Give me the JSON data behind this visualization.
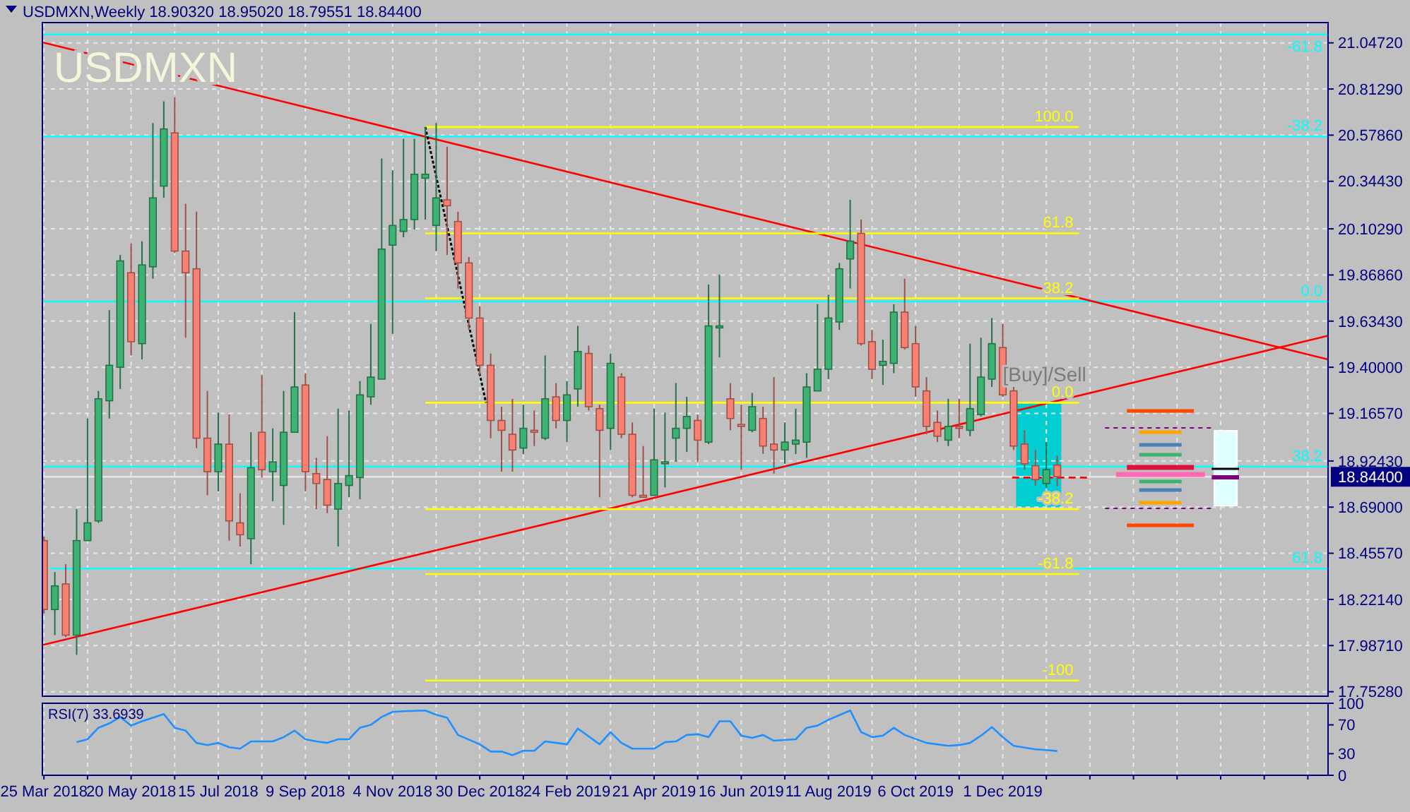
{
  "chart_data": [
    {
      "type": "candlestick",
      "title": "USDMXN,Weekly  18.90320 18.95020 18.79551 18.84400",
      "subtitle": "USDMXN",
      "xlim": [
        "2018-03-24",
        "2020-06-27"
      ],
      "xticks": [
        "2018-03-25",
        "2018-04-22",
        "2018-05-20",
        "2018-06-17",
        "2018-07-15",
        "2018-08-12",
        "2018-09-09",
        "2018-10-07",
        "2018-11-04",
        "2018-12-02",
        "2018-12-30",
        "2019-01-27",
        "2019-02-24",
        "2019-03-24",
        "2019-04-21",
        "2019-05-19",
        "2019-06-16",
        "2019-07-14",
        "2019-08-11",
        "2019-09-08",
        "2019-10-06",
        "2019-11-03",
        "2019-12-01",
        "2019-12-29",
        "2020-01-26",
        "2020-02-23",
        "2020-03-22",
        "2020-04-19",
        "2020-05-17",
        "2020-06-14"
      ],
      "ylim": [
        17.73,
        21.15
      ],
      "yticks": [
        {
          "value": 17.7528,
          "label": "17.75280"
        },
        {
          "value": 17.9871,
          "label": "17.98710"
        },
        {
          "value": 18.2214,
          "label": "18.22140"
        },
        {
          "value": 18.4557,
          "label": "18.45570"
        },
        {
          "value": 18.69,
          "label": "18.69000"
        },
        {
          "value": 18.9243,
          "label": "18.92430"
        },
        {
          "value": 19.1657,
          "label": "19.16570"
        },
        {
          "value": 19.4,
          "label": "19.40000"
        },
        {
          "value": 19.6343,
          "label": "19.63430"
        },
        {
          "value": 19.8686,
          "label": "19.86860"
        },
        {
          "value": 20.1029,
          "label": "20.10290"
        },
        {
          "value": 20.3443,
          "label": "20.34430"
        },
        {
          "value": 20.5786,
          "label": "20.57860"
        },
        {
          "value": 20.8129,
          "label": "20.81290"
        },
        {
          "value": 21.0472,
          "label": "21.04720"
        }
      ],
      "tick_labels": "y",
      "grid": true,
      "ref_lines": [
        {
          "axis": "y",
          "value": 18.844,
          "label": "18.84400",
          "color": "#e6e6e6"
        }
      ],
      "annotations": [
        {
          "text": "[Buy]/Sell",
          "x": "2019-12-01",
          "y": 19.33
        }
      ],
      "series": [
        {
          "type": "line",
          "name": "-61.8",
          "x": [
            "2018-03-24",
            "2020-06-27"
          ],
          "values": [
            21.09,
            21.09
          ],
          "color": "#00ffff"
        },
        {
          "type": "line",
          "name": "-38.2",
          "x": [
            "2018-03-24",
            "2020-06-27"
          ],
          "values": [
            20.572,
            20.572
          ],
          "color": "#00ffff"
        },
        {
          "type": "line",
          "name": "0.0",
          "x": [
            "2018-03-24",
            "2020-06-27"
          ],
          "values": [
            19.734,
            19.734
          ],
          "color": "#00ffff"
        },
        {
          "type": "line",
          "name": "38.2",
          "x": [
            "2018-03-24",
            "2020-06-27"
          ],
          "values": [
            18.896,
            18.896
          ],
          "color": "#00ffff"
        },
        {
          "type": "line",
          "name": "61.8",
          "x": [
            "2018-03-29",
            "2020-06-27"
          ],
          "values": [
            18.378,
            18.378
          ],
          "color": "#00ffff"
        },
        {
          "type": "line",
          "x": [
            "2018-03-24",
            "2020-06-27"
          ],
          "values": [
            21.05,
            19.44
          ],
          "color": "#ff0000"
        },
        {
          "type": "line",
          "x": [
            "2018-03-24",
            "2020-06-27"
          ],
          "values": [
            17.99,
            19.56
          ],
          "color": "#ff0000"
        },
        {
          "type": "line",
          "name": "100.0",
          "x": [
            "2018-11-25",
            "2020-01-19"
          ],
          "values": [
            20.62,
            20.62
          ],
          "color": "#ffff00"
        },
        {
          "type": "line",
          "name": "61.8",
          "x": [
            "2018-11-25",
            "2020-01-19"
          ],
          "values": [
            20.08,
            20.08
          ],
          "color": "#ffff00"
        },
        {
          "type": "line",
          "name": "38.2",
          "x": [
            "2018-11-25",
            "2020-01-19"
          ],
          "values": [
            19.75,
            19.75
          ],
          "color": "#ffff00"
        },
        {
          "type": "line",
          "name": "0.0",
          "x": [
            "2018-11-25",
            "2020-01-19"
          ],
          "values": [
            19.22,
            19.22
          ],
          "color": "#ffff00"
        },
        {
          "type": "line",
          "name": "-38.2",
          "x": [
            "2018-11-25",
            "2020-01-19"
          ],
          "values": [
            18.68,
            18.68
          ],
          "color": "#ffff00"
        },
        {
          "type": "line",
          "name": "-61.8",
          "x": [
            "2018-11-25",
            "2020-01-19"
          ],
          "values": [
            18.35,
            18.35
          ],
          "color": "#ffff00"
        },
        {
          "type": "line",
          "name": "-100",
          "x": [
            "2018-11-25",
            "2020-01-19"
          ],
          "values": [
            17.81,
            17.81
          ],
          "color": "#ffff00"
        },
        {
          "type": "line",
          "x": [
            "2018-11-25",
            "2019-01-03"
          ],
          "values": [
            20.62,
            19.22
          ],
          "color": "#000000",
          "line_style": "dotted"
        },
        {
          "type": "line",
          "x": [
            "2019-12-07",
            "2020-01-26"
          ],
          "values": [
            18.84,
            18.84
          ],
          "color": "#ff0000",
          "line_style": "dashed"
        },
        {
          "type": "candlestick",
          "color": "#3cb371",
          "x": [
            "2018-04-01",
            "2018-04-15",
            "2018-04-22",
            "2018-04-29",
            "2018-05-06",
            "2018-05-13",
            "2018-05-27",
            "2018-06-03",
            "2018-06-10",
            "2018-07-15",
            "2018-08-05",
            "2018-08-19",
            "2018-08-26",
            "2018-09-02",
            "2018-09-30",
            "2018-10-07",
            "2018-10-14",
            "2018-10-21",
            "2018-10-28",
            "2018-11-04",
            "2018-11-11",
            "2018-11-18",
            "2018-11-25",
            "2018-12-02",
            "2019-01-27",
            "2019-02-10",
            "2019-02-24",
            "2019-03-03",
            "2019-03-24",
            "2019-04-21",
            "2019-04-28",
            "2019-05-05",
            "2019-05-12",
            "2019-05-26",
            "2019-06-02",
            "2019-06-23",
            "2019-07-14",
            "2019-07-21",
            "2019-07-28",
            "2019-08-04",
            "2019-08-11",
            "2019-08-18",
            "2019-08-25",
            "2019-09-15",
            "2019-09-22",
            "2019-10-27",
            "2019-11-10",
            "2019-11-17",
            "2019-11-24",
            "2019-12-29"
          ],
          "ohlc": [
            [
              18.17,
              18.36,
              18.04,
              18.29
            ],
            [
              18.04,
              18.68,
              17.94,
              18.52
            ],
            [
              18.52,
              19.14,
              18.52,
              18.61
            ],
            [
              18.62,
              19.28,
              18.61,
              19.24
            ],
            [
              19.23,
              19.69,
              19.14,
              19.41
            ],
            [
              19.4,
              19.97,
              19.29,
              19.94
            ],
            [
              19.52,
              20.04,
              19.44,
              19.92
            ],
            [
              19.91,
              20.64,
              19.85,
              20.26
            ],
            [
              20.32,
              20.75,
              20.26,
              20.61
            ],
            [
              18.87,
              19.17,
              18.77,
              19.01
            ],
            [
              18.53,
              19.07,
              18.4,
              18.89
            ],
            [
              18.87,
              19.09,
              18.72,
              18.92
            ],
            [
              18.8,
              19.28,
              18.6,
              19.07
            ],
            [
              19.07,
              19.68,
              19.07,
              19.3
            ],
            [
              18.68,
              19.19,
              18.49,
              18.81
            ],
            [
              18.8,
              19.18,
              18.74,
              18.85
            ],
            [
              18.84,
              19.33,
              18.73,
              19.26
            ],
            [
              19.25,
              19.62,
              19.21,
              19.35
            ],
            [
              19.34,
              20.46,
              19.34,
              20.0
            ],
            [
              20.02,
              20.4,
              19.57,
              20.12
            ],
            [
              20.09,
              20.56,
              20.06,
              20.15
            ],
            [
              20.15,
              20.56,
              20.1,
              20.38
            ],
            [
              20.36,
              20.62,
              20.15,
              20.38
            ],
            [
              20.12,
              20.64,
              19.99,
              20.26
            ],
            [
              18.99,
              19.21,
              18.96,
              19.09
            ],
            [
              19.04,
              19.46,
              19.03,
              19.24
            ],
            [
              19.13,
              19.33,
              19.02,
              19.26
            ],
            [
              19.29,
              19.61,
              19.2,
              19.48
            ],
            [
              19.09,
              19.47,
              18.98,
              19.42
            ],
            [
              18.75,
              19.19,
              18.75,
              18.93
            ],
            [
              18.91,
              19.17,
              18.79,
              18.92
            ],
            [
              19.04,
              19.32,
              18.92,
              19.09
            ],
            [
              19.09,
              19.25,
              18.97,
              19.15
            ],
            [
              19.02,
              19.82,
              19.01,
              19.61
            ],
            [
              19.6,
              19.87,
              19.45,
              19.61
            ],
            [
              19.08,
              19.27,
              19.07,
              19.2
            ],
            [
              18.98,
              19.12,
              18.91,
              19.02
            ],
            [
              19.01,
              19.19,
              18.96,
              19.03
            ],
            [
              19.02,
              19.37,
              18.94,
              19.3
            ],
            [
              19.28,
              19.72,
              19.28,
              19.39
            ],
            [
              19.39,
              19.77,
              19.34,
              19.65
            ],
            [
              19.63,
              19.93,
              19.59,
              19.9
            ],
            [
              19.95,
              20.25,
              19.8,
              20.04
            ],
            [
              19.41,
              19.54,
              19.31,
              19.43
            ],
            [
              19.42,
              19.72,
              19.37,
              19.68
            ],
            [
              19.03,
              19.24,
              19.0,
              19.1
            ],
            [
              19.08,
              19.52,
              19.05,
              19.19
            ],
            [
              19.16,
              19.55,
              19.15,
              19.35
            ],
            [
              19.34,
              19.65,
              19.3,
              19.52
            ],
            [
              18.81,
              19.02,
              18.79,
              18.88
            ]
          ]
        },
        {
          "type": "candlestick",
          "color": "#fa8072",
          "x": [
            "2018-03-25",
            "2018-04-08",
            "2018-05-20",
            "2018-06-17",
            "2018-06-24",
            "2018-07-01",
            "2018-07-08",
            "2018-07-22",
            "2018-07-29",
            "2018-08-12",
            "2018-09-09",
            "2018-09-16",
            "2018-09-23",
            "2018-12-09",
            "2018-12-16",
            "2018-12-23",
            "2018-12-30",
            "2019-01-06",
            "2019-01-13",
            "2019-01-20",
            "2019-02-03",
            "2019-02-17",
            "2019-03-10",
            "2019-03-17",
            "2019-03-31",
            "2019-04-07",
            "2019-04-14",
            "2019-05-19",
            "2019-06-09",
            "2019-06-16",
            "2019-06-30",
            "2019-07-07",
            "2019-09-01",
            "2019-09-08",
            "2019-09-29",
            "2019-10-06",
            "2019-10-13",
            "2019-10-20",
            "2019-11-03",
            "2019-12-01",
            "2019-12-08",
            "2019-12-15",
            "2019-12-22",
            "2020-01-05"
          ],
          "ohlc": [
            [
              18.52,
              18.54,
              18.15,
              18.17
            ],
            [
              18.3,
              18.4,
              18.03,
              18.04
            ],
            [
              19.88,
              20.03,
              19.46,
              19.53
            ],
            [
              20.59,
              20.77,
              19.98,
              19.99
            ],
            [
              19.99,
              20.23,
              19.55,
              19.88
            ],
            [
              19.9,
              20.19,
              18.99,
              19.04
            ],
            [
              19.04,
              19.28,
              18.75,
              18.87
            ],
            [
              19.01,
              19.16,
              18.52,
              18.62
            ],
            [
              18.61,
              18.76,
              18.49,
              18.55
            ],
            [
              19.07,
              19.36,
              18.84,
              18.88
            ],
            [
              19.31,
              19.37,
              18.77,
              18.87
            ],
            [
              18.86,
              18.94,
              18.68,
              18.81
            ],
            [
              18.83,
              19.05,
              18.66,
              18.7
            ],
            [
              20.25,
              20.52,
              19.97,
              20.22
            ],
            [
              20.14,
              20.19,
              19.8,
              19.93
            ],
            [
              19.93,
              19.96,
              19.59,
              19.65
            ],
            [
              19.65,
              19.71,
              19.36,
              19.41
            ],
            [
              19.41,
              19.47,
              19.04,
              19.13
            ],
            [
              19.13,
              19.2,
              18.87,
              19.08
            ],
            [
              19.06,
              19.24,
              18.87,
              18.98
            ],
            [
              19.08,
              19.18,
              19.0,
              19.07
            ],
            [
              19.25,
              19.32,
              19.09,
              19.13
            ],
            [
              19.47,
              19.51,
              19.18,
              19.2
            ],
            [
              19.19,
              19.21,
              18.74,
              19.08
            ],
            [
              19.35,
              19.37,
              19.04,
              19.06
            ],
            [
              19.06,
              19.12,
              18.74,
              18.75
            ],
            [
              18.75,
              19.0,
              18.74,
              18.74
            ],
            [
              19.13,
              19.16,
              18.92,
              19.03
            ],
            [
              19.24,
              19.32,
              19.08,
              19.14
            ],
            [
              19.11,
              19.21,
              18.88,
              19.1
            ],
            [
              19.14,
              19.2,
              18.96,
              19.0
            ],
            [
              19.01,
              19.35,
              18.86,
              18.98
            ],
            [
              20.08,
              20.15,
              19.51,
              19.52
            ],
            [
              19.53,
              19.59,
              19.34,
              19.39
            ],
            [
              19.68,
              19.85,
              19.49,
              19.5
            ],
            [
              19.52,
              19.61,
              19.25,
              19.3
            ],
            [
              19.28,
              19.35,
              19.06,
              19.1
            ],
            [
              19.12,
              19.18,
              19.02,
              19.05
            ],
            [
              19.1,
              19.24,
              19.04,
              19.09
            ],
            [
              19.5,
              19.62,
              19.25,
              19.26
            ],
            [
              19.28,
              19.3,
              18.98,
              19.0
            ],
            [
              19.01,
              19.08,
              18.88,
              18.91
            ],
            [
              18.9,
              18.98,
              18.8,
              18.83
            ],
            [
              18.9032,
              18.9502,
              18.79551,
              18.844
            ]
          ]
        }
      ]
    },
    {
      "type": "line",
      "title": "RSI(7) 33.6939",
      "xlim": [
        "2018-03-24",
        "2020-06-27"
      ],
      "xticks": [
        {
          "value": "2018-03-25",
          "label": "25 Mar 2018"
        },
        {
          "value": "2018-04-22",
          "label": null
        },
        {
          "value": "2018-05-20",
          "label": "20 May 2018"
        },
        {
          "value": "2018-06-17",
          "label": null
        },
        {
          "value": "2018-07-15",
          "label": "15 Jul 2018"
        },
        {
          "value": "2018-08-12",
          "label": null
        },
        {
          "value": "2018-09-09",
          "label": "9 Sep 2018"
        },
        {
          "value": "2018-10-07",
          "label": null
        },
        {
          "value": "2018-11-04",
          "label": "4 Nov 2018"
        },
        {
          "value": "2018-12-02",
          "label": null
        },
        {
          "value": "2018-12-30",
          "label": "30 Dec 2018"
        },
        {
          "value": "2019-01-27",
          "label": null
        },
        {
          "value": "2019-02-24",
          "label": "24 Feb 2019"
        },
        {
          "value": "2019-03-24",
          "label": null
        },
        {
          "value": "2019-04-21",
          "label": "21 Apr 2019"
        },
        {
          "value": "2019-05-19",
          "label": null
        },
        {
          "value": "2019-06-16",
          "label": "16 Jun 2019"
        },
        {
          "value": "2019-07-14",
          "label": null
        },
        {
          "value": "2019-08-11",
          "label": "11 Aug 2019"
        },
        {
          "value": "2019-09-08",
          "label": null
        },
        {
          "value": "2019-10-06",
          "label": "6 Oct 2019"
        },
        {
          "value": "2019-11-03",
          "label": null
        },
        {
          "value": "2019-12-01",
          "label": "1 Dec 2019"
        },
        {
          "value": "2019-12-29",
          "label": null
        },
        {
          "value": "2020-01-26",
          "label": null
        },
        {
          "value": "2020-02-23",
          "label": null
        },
        {
          "value": "2020-03-22",
          "label": null
        },
        {
          "value": "2020-04-19",
          "label": null
        },
        {
          "value": "2020-05-17",
          "label": null
        },
        {
          "value": "2020-06-14",
          "label": null
        }
      ],
      "ylim": [
        0,
        100
      ],
      "yticks": [
        0,
        30,
        70,
        100
      ],
      "grid": "x",
      "series": [
        {
          "color": "#1e90ff",
          "x": [
            "2018-04-15",
            "2018-04-22",
            "2018-04-29",
            "2018-05-06",
            "2018-05-13",
            "2018-05-20",
            "2018-05-27",
            "2018-06-03",
            "2018-06-10",
            "2018-06-17",
            "2018-06-24",
            "2018-07-01",
            "2018-07-08",
            "2018-07-15",
            "2018-07-22",
            "2018-07-29",
            "2018-08-05",
            "2018-08-12",
            "2018-08-19",
            "2018-08-26",
            "2018-09-02",
            "2018-09-09",
            "2018-09-16",
            "2018-09-23",
            "2018-09-30",
            "2018-10-07",
            "2018-10-14",
            "2018-10-21",
            "2018-10-28",
            "2018-11-04",
            "2018-11-11",
            "2018-11-25",
            "2018-12-02",
            "2018-12-09",
            "2018-12-16",
            "2018-12-30",
            "2019-01-06",
            "2019-01-13",
            "2019-01-20",
            "2019-01-27",
            "2019-02-03",
            "2019-02-10",
            "2019-02-24",
            "2019-03-03",
            "2019-03-17",
            "2019-03-24",
            "2019-03-31",
            "2019-04-07",
            "2019-04-21",
            "2019-04-28",
            "2019-05-05",
            "2019-05-12",
            "2019-05-19",
            "2019-05-26",
            "2019-06-02",
            "2019-06-09",
            "2019-06-16",
            "2019-06-23",
            "2019-06-30",
            "2019-07-07",
            "2019-07-21",
            "2019-07-28",
            "2019-08-04",
            "2019-08-11",
            "2019-08-25",
            "2019-09-01",
            "2019-09-08",
            "2019-09-15",
            "2019-09-22",
            "2019-09-29",
            "2019-10-13",
            "2019-10-27",
            "2019-11-03",
            "2019-11-10",
            "2019-11-17",
            "2019-11-24",
            "2019-12-01",
            "2019-12-08",
            "2019-12-22",
            "2019-12-29",
            "2020-01-05"
          ],
          "values": [
            46,
            50,
            66,
            72,
            81,
            69,
            75,
            80,
            85,
            66,
            62,
            45,
            42,
            45,
            39,
            37,
            47,
            47,
            47,
            53,
            62,
            50,
            47,
            45,
            50,
            50,
            66,
            70,
            81,
            88,
            89,
            90,
            84,
            80,
            56,
            43,
            33,
            33,
            28,
            34,
            34,
            47,
            43,
            65,
            43,
            60,
            45,
            37,
            37,
            46,
            47,
            56,
            57,
            53,
            75,
            75,
            55,
            52,
            56,
            48,
            50,
            66,
            69,
            77,
            90,
            60,
            53,
            55,
            66,
            56,
            45,
            41,
            42,
            45,
            55,
            67,
            53,
            41,
            36,
            35,
            33.6939
          ]
        }
      ]
    }
  ]
}
